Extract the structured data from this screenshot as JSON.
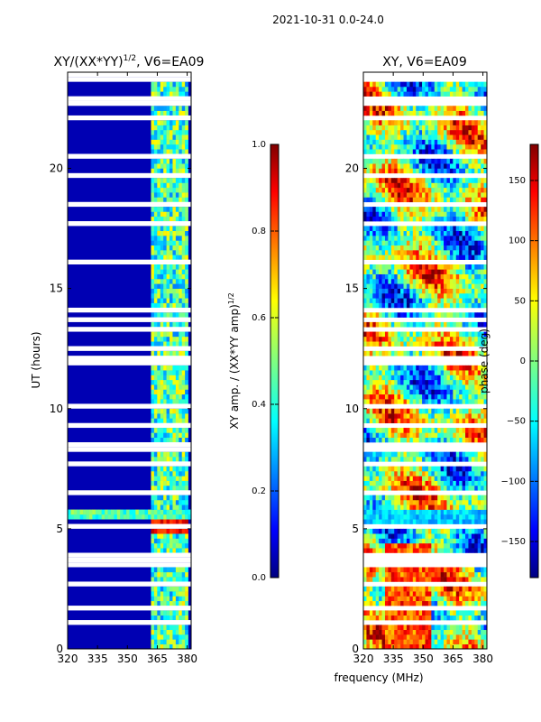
{
  "suptitle": "2021-10-31 0.0-24.0",
  "chart_data": [
    {
      "type": "heatmap",
      "title_main": "XY/(XX*YY)",
      "title_sup": "1/2",
      "title_rest": ", V6=EA09",
      "xlabel": "",
      "ylabel": "UT (hours)",
      "xlim": [
        320,
        382
      ],
      "ylim": [
        0,
        24
      ],
      "xticks": [
        "320",
        "335",
        "350",
        "365",
        "380"
      ],
      "yticks": [
        "0",
        "5",
        "10",
        "15",
        "20"
      ],
      "colorbar": {
        "label_main": "XY amp. / (XX*YY amp)",
        "label_sup": "1/2",
        "range": [
          0.0,
          1.0
        ],
        "ticks": [
          "0.0",
          "0.2",
          "0.4",
          "0.6",
          "0.8",
          "1.0"
        ]
      },
      "features": {
        "background_value": 0.05,
        "bright_channel_band_mhz": [
          362,
          380
        ],
        "bright_band_value": 0.45,
        "flare_hours": [
          4.8,
          5.3
        ],
        "flare_value": 0.95,
        "horizontal_band_hours": [
          5.4,
          5.7
        ]
      }
    },
    {
      "type": "heatmap",
      "title_main": "XY, V6=EA09",
      "xlabel": "frequency (MHz)",
      "ylabel": "",
      "xlim": [
        320,
        382
      ],
      "ylim": [
        0,
        24
      ],
      "xticks": [
        "320",
        "335",
        "350",
        "365",
        "380"
      ],
      "yticks": [
        "0",
        "5",
        "10",
        "15",
        "20"
      ],
      "colorbar": {
        "label_main": "phase (deg)",
        "range": [
          -180,
          180
        ],
        "ticks": [
          "150",
          "100",
          "50",
          "0",
          "−50",
          "−100",
          "−150"
        ]
      }
    }
  ],
  "colors": {
    "jet": [
      "#000080",
      "#0000ff",
      "#0080ff",
      "#00ffff",
      "#80ff80",
      "#ffff00",
      "#ff8000",
      "#ff0000",
      "#800000"
    ],
    "gap": "#ffffff"
  }
}
